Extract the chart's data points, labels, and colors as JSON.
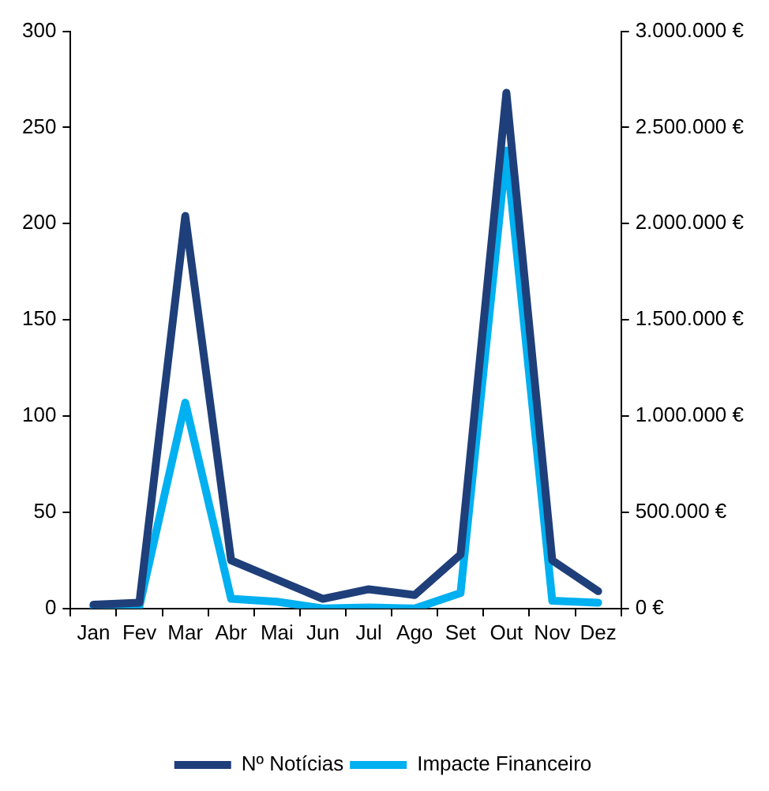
{
  "chart_data": {
    "type": "line",
    "categories": [
      "Jan",
      "Fev",
      "Mar",
      "Abr",
      "Mai",
      "Jun",
      "Jul",
      "Ago",
      "Set",
      "Out",
      "Nov",
      "Dez"
    ],
    "series": [
      {
        "name": "Nº Notícias",
        "color": "#1f3f7a",
        "values": [
          2,
          3,
          204,
          25,
          15,
          5,
          10,
          7,
          28,
          268,
          25,
          9
        ]
      },
      {
        "name": "Impacte Financeiro",
        "color": "#00b0f0",
        "axis": "y2",
        "values": [
          10000,
          10000,
          1070000,
          50000,
          35000,
          0,
          5000,
          0,
          80000,
          2380000,
          40000,
          30000
        ]
      }
    ],
    "ylim": [
      0,
      300
    ],
    "yticks": [
      0,
      50,
      100,
      150,
      200,
      250,
      300
    ],
    "y2lim": [
      0,
      3000000
    ],
    "y2ticks": [
      {
        "value": 0,
        "label": "0 €"
      },
      {
        "value": 500000,
        "label": "500.000 €"
      },
      {
        "value": 1000000,
        "label": "1.000.000 €"
      },
      {
        "value": 1500000,
        "label": "1.500.000 €"
      },
      {
        "value": 2000000,
        "label": "2.000.000 €"
      },
      {
        "value": 2500000,
        "label": "2.500.000 €"
      },
      {
        "value": 3000000,
        "label": "3.000.000 €"
      }
    ],
    "grid": false,
    "legend": "bottom",
    "marker": "none",
    "line_style": "solid"
  }
}
